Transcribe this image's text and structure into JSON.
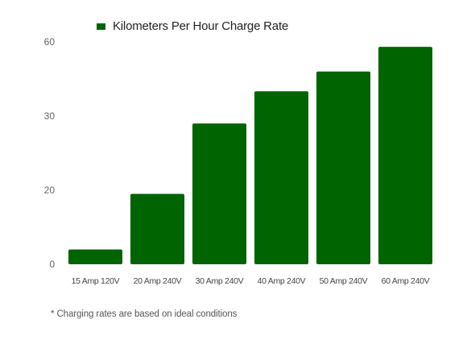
{
  "chart_data": {
    "type": "bar",
    "categories": [
      "15 Amp 120V",
      "20 Amp 240V",
      "30 Amp 240V",
      "40 Amp 240V",
      "50 Amp 240V",
      "60 Amp 240V"
    ],
    "series": [
      {
        "name": "Kilometers Per Hour Charge Rate",
        "values": [
          4,
          19,
          29,
          40,
          48,
          58
        ]
      }
    ],
    "y_ticks": [
      "0",
      "20",
      "30",
      "60"
    ],
    "y_axis_scale": "piecewise-uneven",
    "y_tick_values": [
      0,
      20,
      30,
      60
    ],
    "ylim": [
      0,
      60
    ],
    "grid": false,
    "legend_position": "top-left",
    "bar_color": "#006400",
    "footnote": "* Charging rates are based on ideal conditions"
  }
}
